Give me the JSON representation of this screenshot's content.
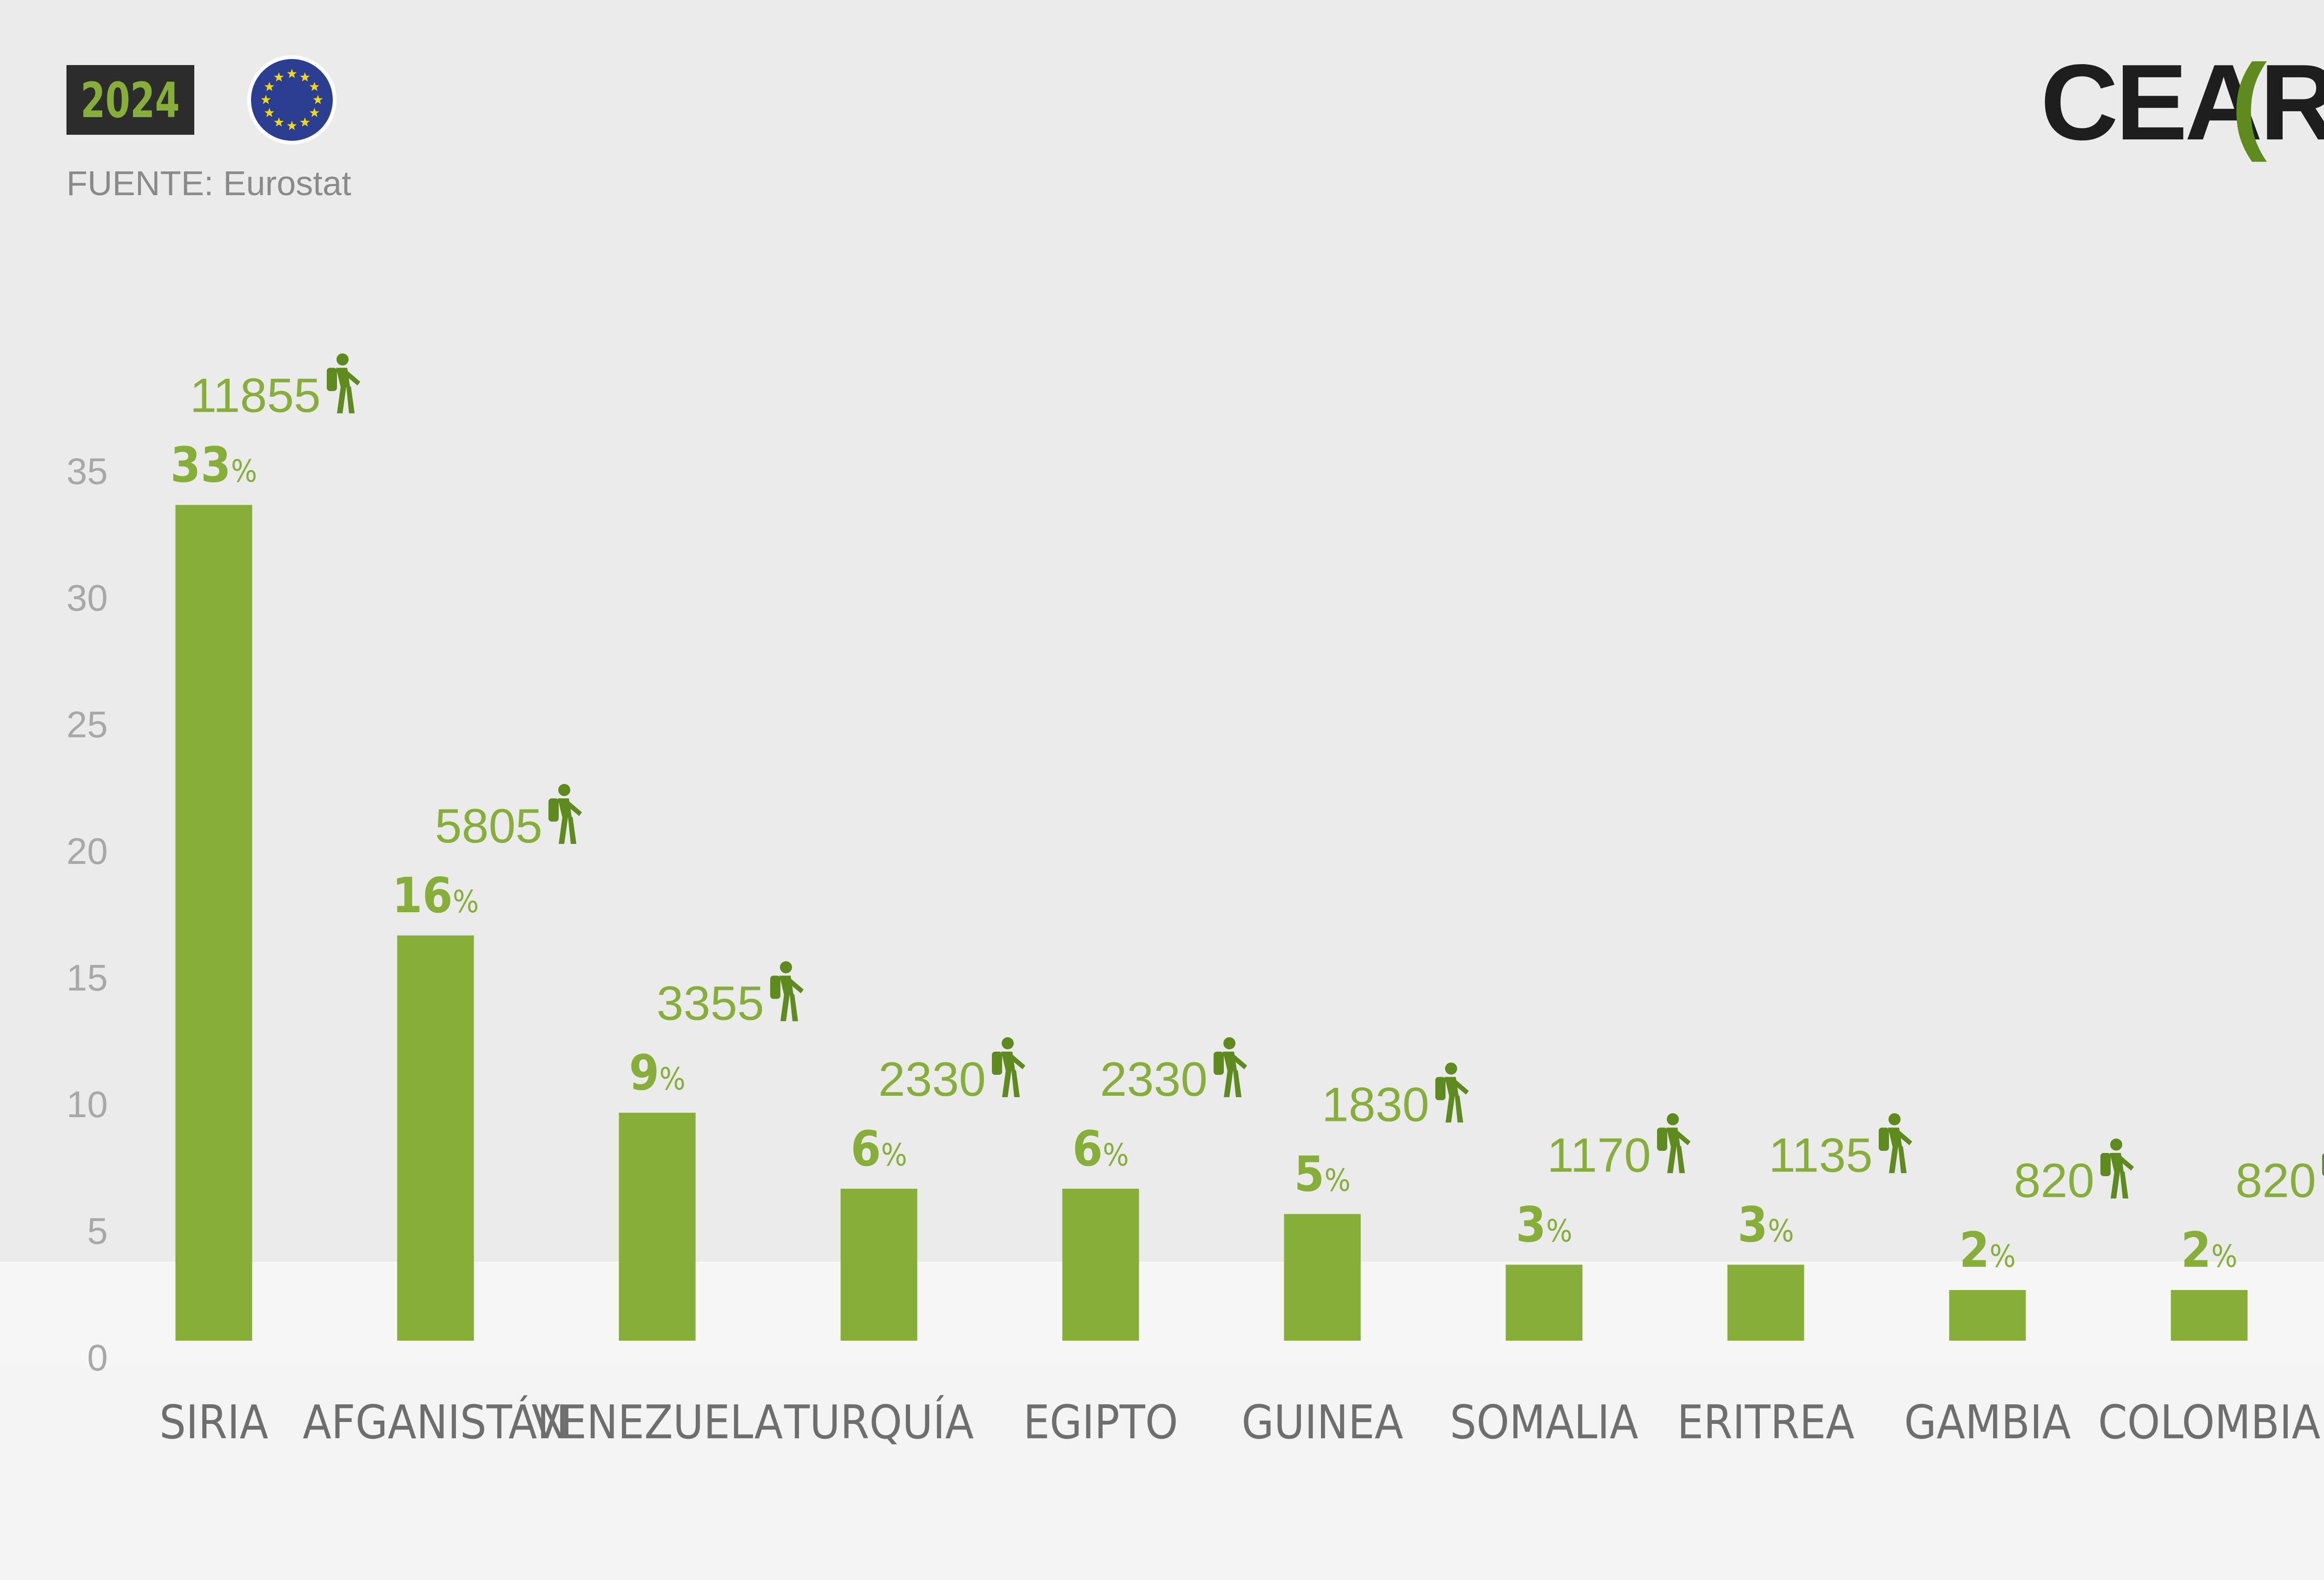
{
  "header": {
    "year": "2024",
    "source": "FUENTE: Eurostat",
    "logo": {
      "text": "CEA",
      "bracket_open": "(",
      "letter": "R",
      "bracket_close": ")"
    }
  },
  "colors": {
    "bar": "#86AE38",
    "label_green": "#86AE38",
    "icon_green": "#5E8A1E",
    "year_box": "#2C2C2C",
    "year_text": "#86AE38",
    "axis_text": "#A8A8A8",
    "category_text": "#6E6E6E",
    "background_wall": "#EBEBEB",
    "floor": "#F7F7F7",
    "side_wall": "#DEDEDE",
    "eu_blue": "#2C3E91",
    "eu_star": "#F5D90A"
  },
  "icons": {
    "eu_flag": "eu-flag-icon",
    "person": "hiker-with-backpack-icon"
  },
  "chart_data": {
    "type": "bar",
    "categories": [
      "SIRIA",
      "AFGANISTÁN",
      "VENEZUELA",
      "TURQUÍA",
      "EGIPTO",
      "GUINEA",
      "SOMALIA",
      "ERITREA",
      "GAMBIA",
      "COLOMBIA"
    ],
    "values": [
      33,
      16,
      9,
      6,
      6,
      5,
      3,
      3,
      2,
      2
    ],
    "counts": [
      "11855",
      "5805",
      "3355",
      "2330",
      "2330",
      "1830",
      "1170",
      "1135",
      "820",
      "820"
    ],
    "percent_labels": [
      "33",
      "16",
      "9",
      "6",
      "6",
      "5",
      "3",
      "3",
      "2",
      "2"
    ],
    "percent_sign": "%",
    "yticks": [
      0,
      5,
      10,
      15,
      20,
      25,
      30,
      35
    ],
    "ylim": [
      0,
      36
    ],
    "title": "",
    "xlabel": "",
    "ylabel": "",
    "grid": false,
    "legend": "none"
  }
}
